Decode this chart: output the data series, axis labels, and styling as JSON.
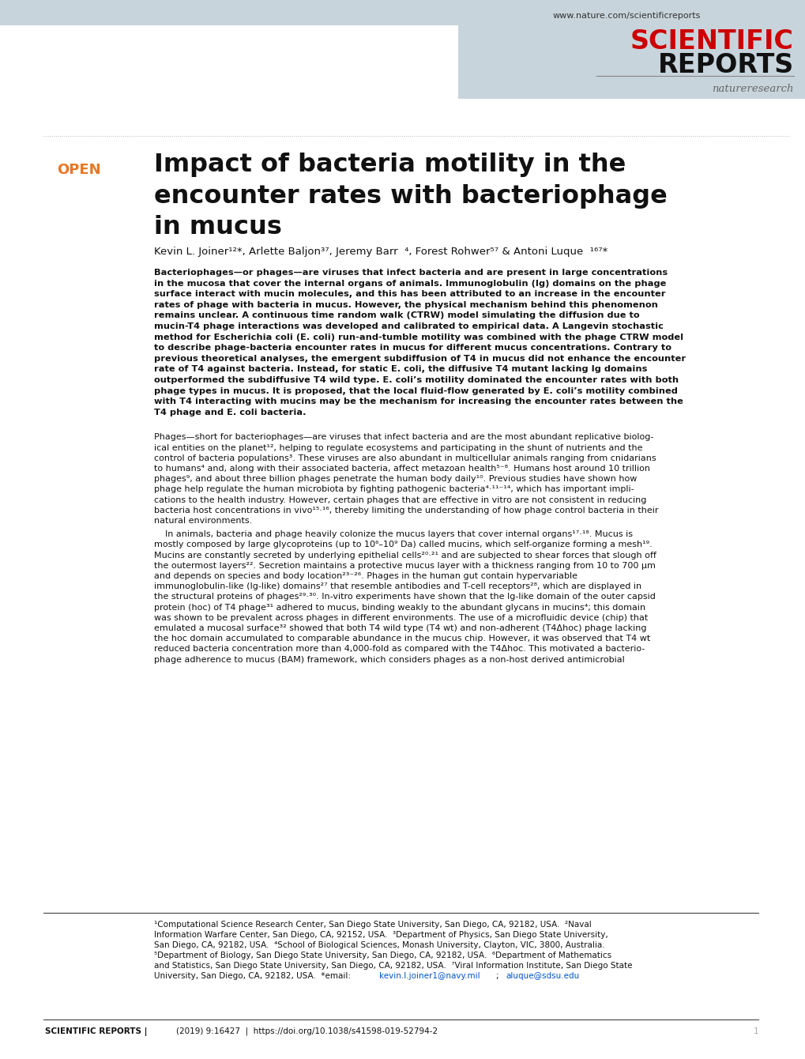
{
  "bg_color": "#ffffff",
  "header_bg": "#c8d4dc",
  "header_url": "www.nature.com/scientificreports",
  "journal_name_red": "SCIENTIFIC",
  "journal_name_black": "REPORTS",
  "nature_research": "natureresearch",
  "open_label": "OPEN",
  "open_color": "#e87722",
  "title_line1": "Impact of bacteria motility in the",
  "title_line2": "encounter rates with bacteriophage",
  "title_line3": "in mucus",
  "footer_journal": "SCIENTIFIC REPORTS |",
  "footer_info": "    (2019) 9:16427  |  https://doi.org/10.1038/s41598-019-52794-2",
  "footer_page": "1"
}
